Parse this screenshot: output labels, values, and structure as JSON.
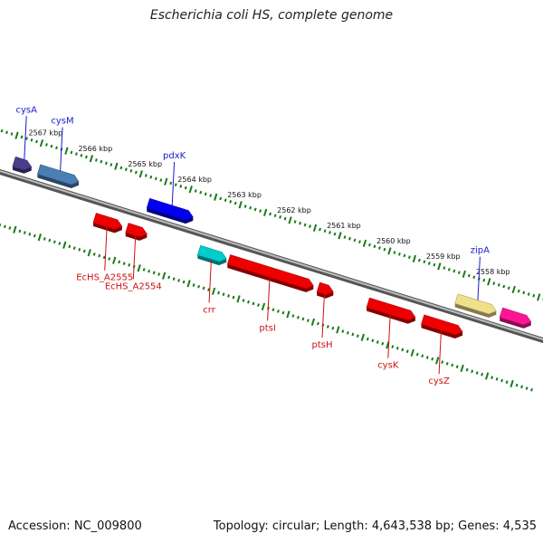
{
  "title": "Escherichia coli HS, complete genome",
  "footer": {
    "accession": "Accession: NC_009800",
    "summary": "Topology: circular; Length: 4,643,538 bp; Genes: 4,535"
  },
  "colors": {
    "backbone": "#888888",
    "ticks": "#1a7a1a",
    "forward_label": "#1a1acc",
    "reverse_label": "#cc1111"
  },
  "scale": [
    {
      "label": "2567 kbp",
      "kbp": 2567
    },
    {
      "label": "2566 kbp",
      "kbp": 2566
    },
    {
      "label": "2565 kbp",
      "kbp": 2565
    },
    {
      "label": "2564 kbp",
      "kbp": 2564
    },
    {
      "label": "2563 kbp",
      "kbp": 2563
    },
    {
      "label": "2562 kbp",
      "kbp": 2562
    },
    {
      "label": "2561 kbp",
      "kbp": 2561
    },
    {
      "label": "2560 kbp",
      "kbp": 2560
    },
    {
      "label": "2559 kbp",
      "kbp": 2559
    },
    {
      "label": "2558 kbp",
      "kbp": 2558
    }
  ],
  "genes": [
    {
      "name": "cysA",
      "strand": "forward",
      "color": "#4a3e8a",
      "start": 2567.4,
      "end": 2567.05,
      "label": "cysA"
    },
    {
      "name": "cysM",
      "strand": "forward",
      "color": "#4a7fb5",
      "start": 2566.9,
      "end": 2566.1,
      "label": "cysM"
    },
    {
      "name": "pdxK",
      "strand": "forward",
      "color": "#0000ee",
      "start": 2564.7,
      "end": 2563.8,
      "label": "pdxK"
    },
    {
      "name": "zipA",
      "strand": "forward",
      "color": "#f0e08a",
      "start": 2558.5,
      "end": 2557.7,
      "label": "zipA"
    },
    {
      "name": "pink1",
      "strand": "forward",
      "color": "#ff1493",
      "start": 2557.6,
      "end": 2557.0,
      "label": ""
    },
    {
      "name": "EcHS_A2555",
      "strand": "reverse",
      "color": "#ee0000",
      "start": 2565.6,
      "end": 2565.05,
      "label": "EcHS_A2555"
    },
    {
      "name": "EcHS_A2554",
      "strand": "reverse",
      "color": "#ee0000",
      "start": 2564.95,
      "end": 2564.55,
      "label": "EcHS_A2554"
    },
    {
      "name": "crr",
      "strand": "reverse",
      "color": "#00cccc",
      "start": 2563.5,
      "end": 2562.95,
      "label": "crr"
    },
    {
      "name": "ptsI",
      "strand": "reverse",
      "color": "#ee0000",
      "start": 2562.9,
      "end": 2561.2,
      "label": "ptsI"
    },
    {
      "name": "ptsH",
      "strand": "reverse",
      "color": "#ee0000",
      "start": 2561.1,
      "end": 2560.8,
      "label": "ptsH"
    },
    {
      "name": "cysK",
      "strand": "reverse",
      "color": "#ee0000",
      "start": 2560.1,
      "end": 2559.15,
      "label": "cysK"
    },
    {
      "name": "cysZ",
      "strand": "reverse",
      "color": "#ee0000",
      "start": 2559.0,
      "end": 2558.2,
      "label": "cysZ"
    }
  ]
}
